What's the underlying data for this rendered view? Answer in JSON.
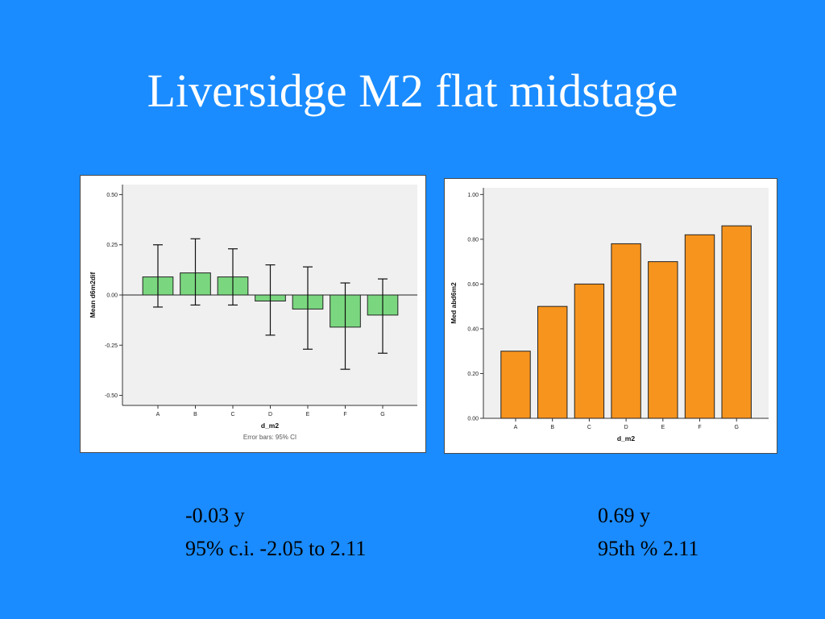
{
  "slide": {
    "title": "Liversidge M2 flat midstage",
    "stats_left": {
      "line1": "-0.03 y",
      "line2": "95% c.i. -2.05 to 2.11"
    },
    "stats_right": {
      "line1": "0.69 y",
      "line2": "95th % 2.11"
    }
  },
  "chart_data": [
    {
      "type": "bar",
      "xlabel": "d_m2",
      "ylabel": "Mean d6m2dif",
      "note": "Error bars: 95% CI",
      "categories": [
        "A",
        "B",
        "C",
        "D",
        "E",
        "F",
        "G"
      ],
      "values": [
        0.09,
        0.11,
        0.09,
        -0.03,
        -0.07,
        -0.16,
        -0.1
      ],
      "error_low": [
        -0.06,
        -0.05,
        -0.05,
        -0.2,
        -0.27,
        -0.37,
        -0.29
      ],
      "error_high": [
        0.25,
        0.28,
        0.23,
        0.15,
        0.14,
        0.06,
        0.08
      ],
      "ylim": [
        -0.55,
        0.55
      ],
      "yticks": [
        0.5,
        0.25,
        0.0,
        -0.25,
        -0.5
      ],
      "ytick_labels": [
        "0.50",
        "0.25",
        "0.00",
        "-0.25",
        "-0.50"
      ],
      "grid": false,
      "bar_color": "#7ad77f",
      "plot_bg": "#f0f0f0"
    },
    {
      "type": "bar",
      "xlabel": "d_m2",
      "ylabel": "Med abd6m2",
      "categories": [
        "A",
        "B",
        "C",
        "D",
        "E",
        "F",
        "G"
      ],
      "values": [
        0.3,
        0.5,
        0.6,
        0.78,
        0.7,
        0.82,
        0.86
      ],
      "ylim": [
        0.0,
        1.03
      ],
      "yticks": [
        1.0,
        0.8,
        0.6,
        0.4,
        0.2,
        0.0
      ],
      "ytick_labels": [
        "1.00",
        "0.80",
        "0.60",
        "0.40",
        "0.20",
        "0.00"
      ],
      "grid": false,
      "bar_color": "#f7941d",
      "plot_bg": "#f0f0f0"
    }
  ]
}
